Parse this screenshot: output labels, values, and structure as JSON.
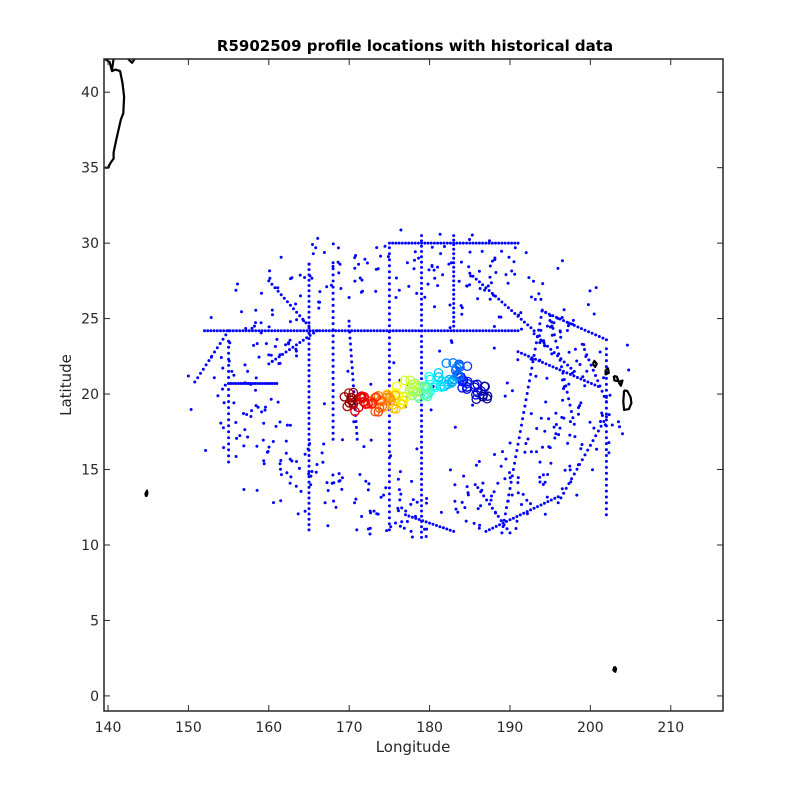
{
  "chart_data": {
    "type": "scatter",
    "title": "R5902509 profile locations with historical data",
    "xlabel": "Longitude",
    "ylabel": "Latitude",
    "xlim": [
      139.5,
      216.5
    ],
    "ylim": [
      -1,
      42.2
    ],
    "xticks": [
      140,
      150,
      160,
      170,
      180,
      190,
      200,
      210
    ],
    "yticks": [
      0,
      5,
      10,
      15,
      20,
      25,
      30,
      35,
      40
    ],
    "grid": false,
    "legend": "none",
    "colors": {
      "historical": "#0000ff",
      "coastline": "#000000",
      "trajectory_colormap": "jet"
    },
    "historical_tracks": [
      {
        "from": [
          175,
          30
        ],
        "to": [
          191,
          30
        ],
        "step": 0.4
      },
      {
        "from": [
          152,
          24.2
        ],
        "to": [
          191,
          24.2
        ],
        "step": 0.4
      },
      {
        "from": [
          155,
          20.7
        ],
        "to": [
          161,
          20.7
        ],
        "step": 0.3
      },
      {
        "from": [
          179,
          30.5
        ],
        "to": [
          179,
          10.5
        ],
        "step": 0.35
      },
      {
        "from": [
          168,
          28.7
        ],
        "to": [
          168,
          17
        ],
        "step": 0.4
      },
      {
        "from": [
          165,
          28.6
        ],
        "to": [
          165,
          11
        ],
        "step": 0.35
      },
      {
        "from": [
          175,
          29.7
        ],
        "to": [
          175,
          11
        ],
        "step": 0.4
      },
      {
        "from": [
          183,
          30.5
        ],
        "to": [
          183,
          24.2
        ],
        "step": 0.3
      },
      {
        "from": [
          155,
          23.5
        ],
        "to": [
          155,
          15.5
        ],
        "step": 0.4
      },
      {
        "from": [
          202,
          23
        ],
        "to": [
          202,
          12
        ],
        "step": 0.4
      },
      {
        "from": [
          194,
          25.5
        ],
        "to": [
          189,
          10.8
        ],
        "step": 0.45
      },
      {
        "from": [
          194,
          25.5
        ],
        "to": [
          202,
          23.6
        ],
        "step": 0.45
      },
      {
        "from": [
          160,
          27.5
        ],
        "to": [
          165,
          24.5
        ],
        "step": 0.45
      },
      {
        "from": [
          155,
          24.2
        ],
        "to": [
          150.8,
          20.8
        ],
        "step": 0.45
      },
      {
        "from": [
          185,
          28
        ],
        "to": [
          193,
          24.2
        ],
        "step": 0.45
      },
      {
        "from": [
          193,
          24
        ],
        "to": [
          198,
          21.5
        ],
        "step": 0.45
      },
      {
        "from": [
          191,
          22.8
        ],
        "to": [
          201,
          20.5
        ],
        "step": 0.45
      },
      {
        "from": [
          195,
          25.2
        ],
        "to": [
          198,
          18
        ],
        "step": 0.45
      },
      {
        "from": [
          187,
          10.9
        ],
        "to": [
          196,
          13.2
        ],
        "step": 0.45
      },
      {
        "from": [
          177,
          12
        ],
        "to": [
          183,
          10.9
        ],
        "step": 0.45
      },
      {
        "from": [
          170,
          24.5
        ],
        "to": [
          171,
          17
        ],
        "step": 0.4
      },
      {
        "from": [
          160,
          22
        ],
        "to": [
          166,
          24.2
        ],
        "step": 0.45
      },
      {
        "from": [
          196,
          12.8
        ],
        "to": [
          202,
          18.5
        ],
        "step": 0.45
      },
      {
        "from": [
          199,
          23.3
        ],
        "to": [
          202,
          19.5
        ],
        "step": 0.45
      },
      {
        "from": [
          186,
          13.8
        ],
        "to": [
          190,
          10.8
        ],
        "step": 0.45
      }
    ],
    "historical_scatter_count": 520,
    "historical_scatter_seed": 7,
    "historical_scatter_region": {
      "lon": [
        150,
        205
      ],
      "lat": [
        10.5,
        31
      ]
    },
    "trajectory": {
      "count": 130,
      "start": [
        187,
        20.1
      ],
      "end": [
        169.5,
        19.8
      ],
      "waypoints": [
        [
          187,
          20.1
        ],
        [
          185,
          20.5
        ],
        [
          183.5,
          21.8
        ],
        [
          182,
          21
        ],
        [
          180.5,
          20.6
        ],
        [
          179,
          20.3
        ],
        [
          177,
          20.5
        ],
        [
          176,
          19.7
        ],
        [
          174,
          19.4
        ],
        [
          172,
          19.3
        ],
        [
          170.5,
          19.5
        ],
        [
          169.5,
          19.8
        ]
      ]
    },
    "coastlines": [
      [
        [
          139.6,
          42.2
        ],
        [
          140.2,
          42
        ],
        [
          140.5,
          41.4
        ],
        [
          140.9,
          41.5
        ],
        [
          141.5,
          41.4
        ],
        [
          141.8,
          40.6
        ],
        [
          142,
          39.7
        ],
        [
          141.9,
          38.6
        ],
        [
          141.6,
          38.2
        ],
        [
          141.3,
          37.5
        ],
        [
          141.0,
          36.8
        ],
        [
          140.7,
          36.0
        ],
        [
          140.7,
          35.6
        ],
        [
          140.3,
          35.3
        ],
        [
          140.0,
          35.0
        ],
        [
          139.6,
          35.0
        ]
      ],
      [
        [
          140.5,
          41.5
        ],
        [
          140.7,
          42.2
        ]
      ],
      [
        [
          142.5,
          42.2
        ],
        [
          143,
          41.95
        ],
        [
          143.3,
          42.2
        ]
      ],
      [
        [
          144.75,
          13.2
        ],
        [
          144.9,
          13.4
        ],
        [
          144.85,
          13.6
        ],
        [
          144.65,
          13.4
        ],
        [
          144.75,
          13.2
        ]
      ],
      [
        [
          200.3,
          22.0
        ],
        [
          200.5,
          22.2
        ],
        [
          200.8,
          22.0
        ],
        [
          200.6,
          21.8
        ],
        [
          200.3,
          22.0
        ]
      ],
      [
        [
          201.9,
          21.6
        ],
        [
          202.2,
          21.7
        ],
        [
          202.3,
          21.4
        ],
        [
          201.9,
          21.3
        ],
        [
          201.9,
          21.6
        ]
      ],
      [
        [
          202.9,
          21.2
        ],
        [
          203.3,
          21.15
        ],
        [
          203.5,
          20.85
        ],
        [
          203.0,
          20.9
        ],
        [
          202.9,
          21.2
        ]
      ],
      [
        [
          203.5,
          20.8
        ],
        [
          204.0,
          20.9
        ],
        [
          203.8,
          20.55
        ],
        [
          203.5,
          20.8
        ]
      ],
      [
        [
          204.2,
          20.25
        ],
        [
          204.6,
          20.2
        ],
        [
          205.0,
          19.8
        ],
        [
          205.1,
          19.4
        ],
        [
          204.8,
          19.0
        ],
        [
          204.2,
          18.95
        ],
        [
          204.1,
          19.5
        ],
        [
          204.2,
          20.25
        ]
      ],
      [
        [
          203.0,
          1.95
        ],
        [
          203.2,
          1.8
        ],
        [
          203.1,
          1.6
        ],
        [
          202.85,
          1.7
        ],
        [
          203.0,
          1.95
        ]
      ]
    ]
  }
}
